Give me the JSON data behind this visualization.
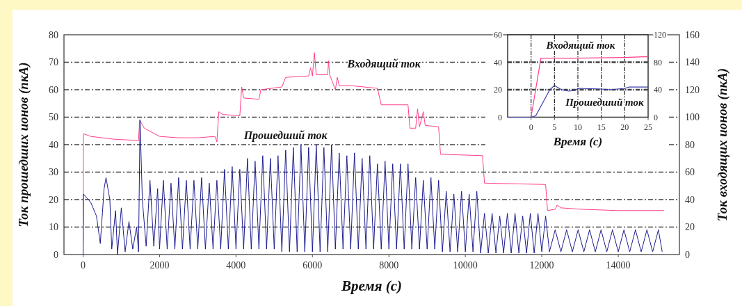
{
  "chart_data": [
    {
      "type": "line",
      "xlabel": "Время (с)",
      "ylabel": "Ток прошедших ионов (пкА)",
      "y2label": "Ток входящих ионов (пкА)",
      "xlim": [
        -500,
        15600
      ],
      "xticks": [
        0,
        2000,
        4000,
        6000,
        8000,
        10000,
        12000,
        14000
      ],
      "ylim": [
        0,
        80
      ],
      "yticks": [
        0,
        10,
        20,
        30,
        40,
        50,
        60,
        70,
        80
      ],
      "y2lim": [
        0,
        160
      ],
      "y2ticks": [
        0,
        20,
        40,
        60,
        80,
        100,
        120,
        140,
        160
      ],
      "grid": "y",
      "series": [
        {
          "name": "Входящий ток",
          "color": "#ff3d8b",
          "axis": "y2",
          "x": [
            0,
            10,
            200,
            800,
            1450,
            1480,
            1600,
            2000,
            2500,
            3000,
            3450,
            3500,
            3550,
            3650,
            4100,
            4150,
            4200,
            4600,
            4650,
            5200,
            5300,
            5900,
            5950,
            6000,
            6050,
            6100,
            6400,
            6420,
            6450,
            6600,
            6650,
            6700,
            7000,
            7700,
            7800,
            8500,
            8550,
            8700,
            8750,
            8800,
            8900,
            8950,
            9300,
            9350,
            10450,
            10500,
            12100,
            12150,
            12350,
            12400,
            12500,
            13000,
            14000,
            15200
          ],
          "values": [
            0,
            88,
            86,
            84,
            83,
            98,
            92,
            86,
            85,
            85,
            86,
            82,
            104,
            102,
            101,
            122,
            114,
            113,
            120,
            122,
            129,
            130,
            136,
            130,
            147,
            131,
            131,
            141,
            131,
            120,
            129,
            123,
            123,
            121,
            109,
            109,
            92,
            92,
            106,
            93,
            104,
            94,
            93,
            73,
            72,
            52,
            51,
            32,
            33,
            36,
            34,
            33,
            32,
            32
          ]
        },
        {
          "name": "Прошедший ток",
          "color": "#1c1c8f",
          "x": [
            0,
            10,
            200,
            350,
            450,
            550,
            600,
            700,
            750,
            850,
            900,
            1000,
            1100,
            1200,
            1300,
            1400,
            1450,
            1490,
            1550,
            1650,
            1750,
            1850,
            1950,
            2000,
            2100,
            2200,
            2300,
            2400,
            2500,
            2600,
            2700,
            2800,
            2900,
            3000,
            3100,
            3200,
            3300,
            3400,
            3500,
            3600,
            3700,
            3800,
            3900,
            4000,
            4100,
            4200,
            4300,
            4400,
            4500,
            4600,
            4700,
            4800,
            4900,
            5000,
            5100,
            5200,
            5300,
            5400,
            5500,
            5600,
            5700,
            5800,
            5900,
            6000,
            6100,
            6200,
            6300,
            6400,
            6500,
            6600,
            6700,
            6800,
            6900,
            7000,
            7100,
            7200,
            7300,
            7400,
            7500,
            7600,
            7700,
            7800,
            7900,
            8000,
            8100,
            8200,
            8300,
            8400,
            8500,
            8600,
            8700,
            8800,
            8900,
            9000,
            9100,
            9200,
            9300,
            9400,
            9500,
            9600,
            9700,
            9800,
            9900,
            10000,
            10100,
            10200,
            10300,
            10400,
            10500,
            10600,
            10700,
            10800,
            10900,
            11000,
            11100,
            11200,
            11300,
            11400,
            11500,
            11600,
            11700,
            11800,
            11900,
            12000,
            12100,
            12200,
            12350,
            12500,
            12650,
            12800,
            12950,
            13100,
            13250,
            13400,
            13550,
            13700,
            13850,
            14000,
            14150,
            14300,
            14450,
            14600,
            14750,
            14900,
            15050,
            15150
          ],
          "values": [
            0,
            22,
            19,
            14,
            4,
            24,
            28,
            20,
            2,
            16,
            0,
            17,
            1,
            12,
            2,
            10,
            1,
            49,
            20,
            3,
            27,
            3,
            24,
            2,
            27,
            2,
            26,
            2,
            28,
            2,
            27,
            2,
            27,
            2,
            28,
            2,
            26,
            2,
            27,
            2,
            31,
            2,
            32,
            2,
            31,
            2,
            35,
            2,
            34,
            2,
            36,
            2,
            35,
            2,
            36,
            1,
            38,
            1,
            39,
            1,
            40,
            1,
            39,
            1,
            40,
            1,
            39,
            1,
            40,
            2,
            37,
            2,
            36,
            2,
            37,
            2,
            35,
            2,
            36,
            2,
            33,
            2,
            34,
            2,
            33,
            2,
            33,
            2,
            33,
            2,
            28,
            2,
            27,
            2,
            28,
            2,
            27,
            1,
            23,
            1,
            22,
            1,
            23,
            1,
            22,
            1,
            23,
            0.5,
            15,
            0.5,
            15,
            0.5,
            14,
            0.5,
            15,
            0.5,
            15,
            0.5,
            14,
            0.5,
            15,
            0.5,
            15,
            1,
            14,
            1,
            9,
            1,
            9,
            1,
            9,
            1,
            9,
            1,
            9,
            1,
            9,
            1,
            9,
            1,
            9,
            1,
            9,
            1,
            9,
            1
          ]
        }
      ]
    },
    {
      "type": "line",
      "xlabel": "Время (с)",
      "xlim": [
        -5,
        25
      ],
      "xticks": [
        0,
        5,
        10,
        15,
        20,
        25
      ],
      "ylim": [
        0,
        60
      ],
      "yticks": [
        0,
        20,
        40,
        60
      ],
      "y2lim": [
        0,
        120
      ],
      "y2ticks": [
        0,
        40,
        80,
        120
      ],
      "grid": true,
      "series": [
        {
          "name": "Входящий ток",
          "color": "#ff3d8b",
          "axis": "y2",
          "x": [
            -5,
            0,
            2.1,
            10,
            20,
            24,
            25
          ],
          "values": [
            0,
            0,
            86,
            86,
            87,
            88,
            88
          ]
        },
        {
          "name": "Прошедший ток",
          "color": "#3a3aa8",
          "x": [
            -5,
            0,
            1,
            4,
            5,
            6.5,
            8,
            9.5,
            10,
            15,
            17,
            20,
            21,
            25
          ],
          "values": [
            0,
            0,
            1,
            20,
            23,
            20,
            19,
            19.5,
            21,
            20.5,
            20,
            21,
            22,
            22
          ]
        }
      ]
    }
  ]
}
